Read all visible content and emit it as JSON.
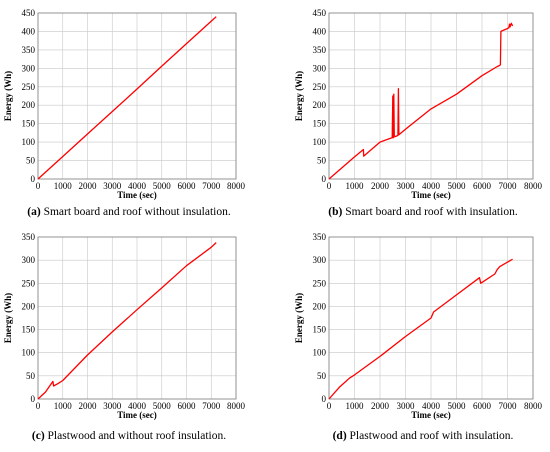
{
  "chart_data": [
    {
      "type": "line",
      "caption_letter": "(a)",
      "caption_text": " Smart board and roof without insulation.",
      "xlabel": "Time (sec)",
      "ylabel": "Energy (Wh)",
      "xlim": [
        0,
        8000
      ],
      "ylim": [
        0,
        450
      ],
      "xticks": [
        0,
        1000,
        2000,
        3000,
        4000,
        5000,
        6000,
        7000,
        8000
      ],
      "yticks": [
        0,
        50,
        100,
        150,
        200,
        250,
        300,
        350,
        400,
        450
      ],
      "grid": true,
      "line_color": "#ff0000",
      "series": [
        {
          "x": [
            0,
            1000,
            2000,
            3000,
            4000,
            5000,
            6000,
            7000,
            7200
          ],
          "y": [
            0,
            61,
            122,
            183,
            244,
            306,
            367,
            428,
            440
          ]
        }
      ]
    },
    {
      "type": "line",
      "caption_letter": "(b)",
      "caption_text": " Smart board and roof with insulation.",
      "xlabel": "Time (sec)",
      "ylabel": "Energy (Wh)",
      "xlim": [
        0,
        8000
      ],
      "ylim": [
        0,
        450
      ],
      "xticks": [
        0,
        1000,
        2000,
        3000,
        4000,
        5000,
        6000,
        7000,
        8000
      ],
      "yticks": [
        0,
        50,
        100,
        150,
        200,
        250,
        300,
        350,
        400,
        450
      ],
      "grid": true,
      "line_color": "#ff0000",
      "series": [
        {
          "x": [
            0,
            1000,
            1350,
            1360,
            1800,
            2000,
            2400,
            2480,
            2500,
            2520,
            2540,
            2560,
            2700,
            2720,
            2740,
            3000,
            4000,
            5000,
            6000,
            6600,
            6700,
            6720,
            6740,
            7000,
            7050,
            7080,
            7100,
            7150,
            7200
          ],
          "y": [
            0,
            60,
            80,
            62,
            88,
            100,
            110,
            112,
            225,
            112,
            230,
            114,
            118,
            245,
            120,
            135,
            190,
            230,
            280,
            305,
            308,
            310,
            400,
            408,
            410,
            420,
            412,
            422,
            415
          ]
        }
      ]
    },
    {
      "type": "line",
      "caption_letter": "(c)",
      "caption_text": " Plastwood and without roof insulation.",
      "xlabel": "Time (sec)",
      "ylabel": "Energy (Wh)",
      "xlim": [
        0,
        8000
      ],
      "ylim": [
        0,
        350
      ],
      "xticks": [
        0,
        1000,
        2000,
        3000,
        4000,
        5000,
        6000,
        7000,
        8000
      ],
      "yticks": [
        0,
        50,
        100,
        150,
        200,
        250,
        300,
        350
      ],
      "grid": true,
      "line_color": "#ff0000",
      "series": [
        {
          "x": [
            0,
            300,
            600,
            630,
            800,
            1000,
            2000,
            3000,
            4000,
            5000,
            6000,
            7000,
            7200
          ],
          "y": [
            0,
            15,
            38,
            28,
            33,
            40,
            95,
            145,
            193,
            240,
            288,
            328,
            338
          ]
        }
      ]
    },
    {
      "type": "line",
      "caption_letter": "(d)",
      "caption_text": " Plastwood and roof with insulation.",
      "xlabel": "Time (sec)",
      "ylabel": "Energy (Wh)",
      "xlim": [
        0,
        8000
      ],
      "ylim": [
        0,
        350
      ],
      "xticks": [
        0,
        1000,
        2000,
        3000,
        4000,
        5000,
        6000,
        7000,
        8000
      ],
      "yticks": [
        0,
        50,
        100,
        150,
        200,
        250,
        300,
        350
      ],
      "grid": true,
      "line_color": "#ff0000",
      "series": [
        {
          "x": [
            0,
            400,
            800,
            1000,
            2000,
            3000,
            4000,
            4100,
            5000,
            5900,
            5950,
            6000,
            6500,
            6600,
            6700,
            7200
          ],
          "y": [
            0,
            25,
            45,
            52,
            92,
            135,
            175,
            188,
            225,
            262,
            250,
            252,
            270,
            280,
            286,
            302
          ]
        }
      ]
    }
  ]
}
